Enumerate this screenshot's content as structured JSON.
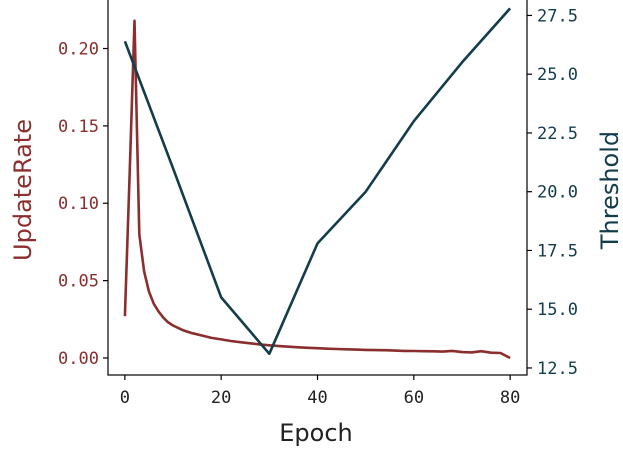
{
  "chart_data": {
    "type": "line",
    "title": "",
    "xlabel": "Epoch",
    "ylabel_left": "UpdateRate",
    "ylabel_right": "Threshold",
    "xlim": [
      -3.5,
      83.5
    ],
    "ylim_left": [
      -0.011,
      0.232
    ],
    "ylim_right": [
      12.2,
      28.2
    ],
    "x_ticks": [
      0,
      20,
      40,
      60,
      80
    ],
    "y_left_ticks": [
      "0.00",
      "0.05",
      "0.10",
      "0.15",
      "0.20"
    ],
    "y_right_ticks": [
      "12.5",
      "15.0",
      "17.5",
      "20.0",
      "22.5",
      "25.0",
      "27.5"
    ],
    "grid": false,
    "colors": {
      "left": "#8b2e2e",
      "right": "#133d4a",
      "axis": "#000000"
    },
    "series": [
      {
        "axis": "left",
        "x": [
          0,
          1,
          2,
          3,
          4,
          5,
          6,
          7,
          8,
          9,
          10,
          12,
          14,
          16,
          18,
          20,
          22,
          24,
          26,
          28,
          30,
          32,
          34,
          36,
          38,
          40,
          42,
          44,
          46,
          48,
          50,
          52,
          54,
          56,
          58,
          60,
          62,
          64,
          66,
          68,
          70,
          72,
          74,
          76,
          78,
          80
        ],
        "values": [
          0.027,
          0.12,
          0.218,
          0.08,
          0.056,
          0.043,
          0.035,
          0.03,
          0.026,
          0.023,
          0.021,
          0.018,
          0.016,
          0.0145,
          0.013,
          0.012,
          0.011,
          0.0102,
          0.0095,
          0.0088,
          0.0082,
          0.0077,
          0.0073,
          0.0069,
          0.0066,
          0.0063,
          0.006,
          0.0058,
          0.0056,
          0.0054,
          0.0052,
          0.0051,
          0.005,
          0.0048,
          0.0046,
          0.0045,
          0.0044,
          0.0043,
          0.0041,
          0.0046,
          0.0038,
          0.0036,
          0.0044,
          0.0034,
          0.0032,
          0.0
        ]
      },
      {
        "axis": "right",
        "x": [
          0,
          10,
          20,
          30,
          40,
          50,
          60,
          70,
          80
        ],
        "values": [
          26.4,
          21.0,
          15.5,
          13.1,
          17.8,
          20.0,
          23.0,
          25.5,
          27.8
        ]
      }
    ]
  }
}
